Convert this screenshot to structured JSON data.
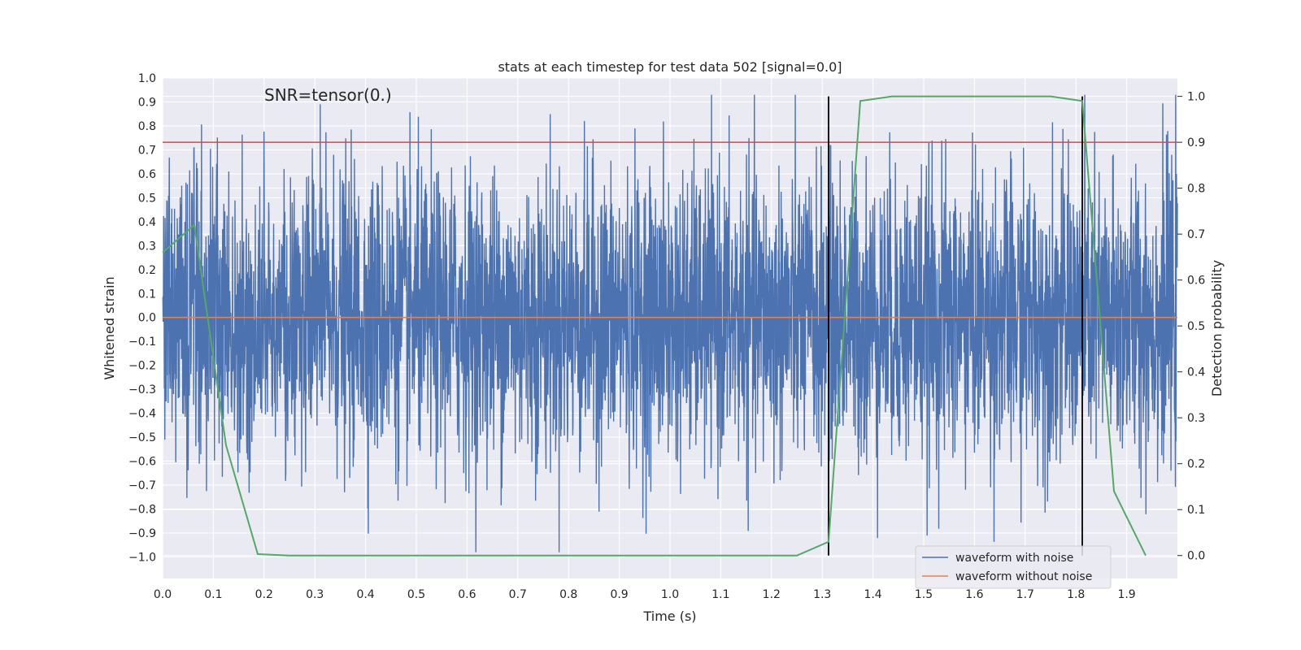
{
  "chart_data": {
    "type": "line",
    "title": "stats at each timestep for test data 502 [signal=0.0]",
    "xlabel": "Time (s)",
    "ylabel": "Whitened strain",
    "y2label": "Detection probability",
    "annotation": "SNR=tensor(0.)",
    "xlim": [
      0.0,
      2.0
    ],
    "ylim": [
      -1.09,
      1.0
    ],
    "y2lim": [
      -0.05,
      1.04
    ],
    "x_ticks": [
      0.0,
      0.1,
      0.2,
      0.3,
      0.4,
      0.5,
      0.6,
      0.7,
      0.8,
      0.9,
      1.0,
      1.1,
      1.2,
      1.3,
      1.4,
      1.5,
      1.6,
      1.7,
      1.8,
      1.9
    ],
    "x_tick_labels": [
      "0.0",
      "0.1",
      "0.2",
      "0.3",
      "0.4",
      "0.5",
      "0.6",
      "0.7",
      "0.8",
      "0.9",
      "1.0",
      "1.1",
      "1.2",
      "1.3",
      "1.4",
      "1.5",
      "1.6",
      "1.7",
      "1.8",
      "1.9"
    ],
    "y_ticks": [
      1.0,
      0.9,
      0.8,
      0.7,
      0.6,
      0.5,
      0.4,
      0.3,
      0.2,
      0.1,
      0.0,
      -0.1,
      -0.2,
      -0.3,
      -0.4,
      -0.5,
      -0.6,
      -0.7,
      -0.8,
      -0.9,
      -1.0
    ],
    "y_tick_labels": [
      "1.0",
      "0.9",
      "0.8",
      "0.7",
      "0.6",
      "0.5",
      "0.4",
      "0.3",
      "0.2",
      "0.1",
      "0.0",
      "−0.1",
      "−0.2",
      "−0.3",
      "−0.4",
      "−0.5",
      "−0.6",
      "−0.7",
      "−0.8",
      "−0.9",
      "−1.0"
    ],
    "y2_ticks": [
      1.0,
      0.9,
      0.8,
      0.7,
      0.6,
      0.5,
      0.4,
      0.3,
      0.2,
      0.1,
      0.0
    ],
    "y2_tick_labels": [
      "1.0",
      "0.9",
      "0.8",
      "0.7",
      "0.6",
      "0.5",
      "0.4",
      "0.3",
      "0.2",
      "0.1",
      "0.0"
    ],
    "series": [
      {
        "name": "waveform with noise",
        "color": "#4c72b0",
        "note": "dense noise trace, 4096 samples, generated deterministically",
        "samples": 4096,
        "amplitude_sigma": 0.3
      },
      {
        "name": "waveform without noise",
        "color": "#dd8452",
        "x": [
          0.0,
          2.0
        ],
        "y": [
          0.0,
          0.0
        ]
      }
    ],
    "probability_series": {
      "color": "#55a868",
      "x": [
        0.0,
        0.0625,
        0.125,
        0.1875,
        0.25,
        0.3125,
        0.375,
        0.4375,
        0.5,
        0.5625,
        0.625,
        0.6875,
        0.75,
        0.8125,
        0.875,
        0.9375,
        1.0,
        1.0625,
        1.125,
        1.1875,
        1.25,
        1.3125,
        1.375,
        1.4375,
        1.5,
        1.5625,
        1.625,
        1.6875,
        1.75,
        1.8125,
        1.875,
        1.9375
      ],
      "y": [
        0.66,
        0.72,
        0.24,
        0.003,
        0.0,
        0.0,
        0.0,
        0.0,
        0.0,
        0.0,
        0.0,
        0.0,
        0.0,
        0.0,
        0.0,
        0.0,
        0.0,
        0.0,
        0.0,
        0.0,
        0.0,
        0.03,
        0.99,
        1.0,
        1.0,
        1.0,
        1.0,
        1.0,
        1.0,
        0.99,
        0.14,
        0.0
      ]
    },
    "threshold": {
      "value": 0.9,
      "axis": "right",
      "color": "#c44e52"
    },
    "vertical_markers": {
      "x": [
        1.3125,
        1.8125
      ],
      "color": "#000000"
    },
    "legend": {
      "location": "lower-right",
      "entries": [
        "waveform with noise",
        "waveform without noise"
      ]
    }
  }
}
